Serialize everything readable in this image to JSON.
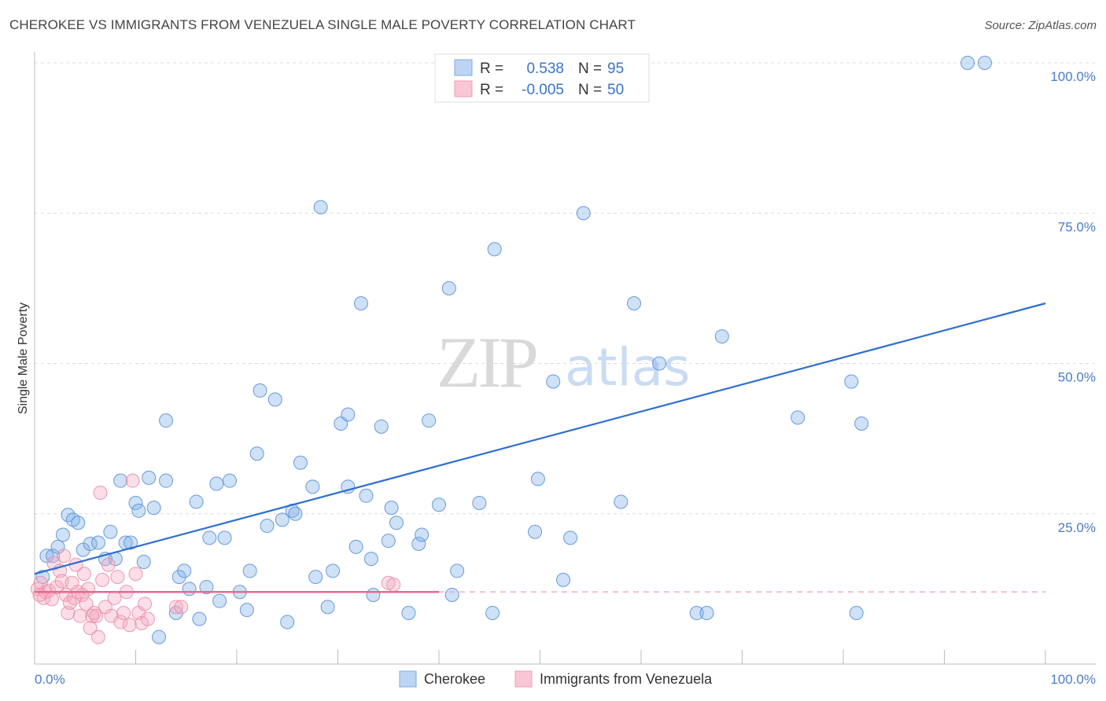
{
  "chart_data": {
    "type": "scatter",
    "title": "CHEROKEE VS IMMIGRANTS FROM VENEZUELA SINGLE MALE POVERTY CORRELATION CHART",
    "source": "Source: ZipAtlas.com",
    "watermark": {
      "zip": "ZIP",
      "atlas": "atlas"
    },
    "ylabel": "Single Male Poverty",
    "xlim": [
      0,
      100
    ],
    "ylim": [
      0,
      100
    ],
    "yticks": [
      25,
      50,
      75,
      100
    ],
    "ytick_labels": [
      "25.0%",
      "50.0%",
      "75.0%",
      "100.0%"
    ],
    "xtick_labels": {
      "min": "0.0%",
      "max": "100.0%"
    },
    "legend_box": {
      "rows": [
        {
          "r_label": "R =",
          "r_value": "0.538",
          "n_label": "N =",
          "n_value": "95"
        },
        {
          "r_label": "R =",
          "r_value": "-0.005",
          "n_label": "N =",
          "n_value": "50"
        }
      ]
    },
    "series": [
      {
        "name": "Cherokee",
        "color": "#7fb0e8",
        "stroke": "#5a91d6",
        "trend_color": "#2f6fcf",
        "trend": {
          "x0": 0,
          "y0": 15,
          "x1": 100,
          "y1": 60
        },
        "points": [
          [
            0.8,
            14.5
          ],
          [
            1.2,
            18
          ],
          [
            1.8,
            18
          ],
          [
            2.3,
            19.5
          ],
          [
            2.8,
            21.5
          ],
          [
            3.3,
            24.8
          ],
          [
            3.8,
            24
          ],
          [
            4.3,
            23.5
          ],
          [
            4.8,
            19
          ],
          [
            5.5,
            20
          ],
          [
            6.3,
            20.2
          ],
          [
            7,
            17.5
          ],
          [
            7.5,
            22
          ],
          [
            8,
            17.5
          ],
          [
            8.5,
            30.5
          ],
          [
            9,
            20.2
          ],
          [
            9.5,
            20.2
          ],
          [
            10,
            26.8
          ],
          [
            10.3,
            25.5
          ],
          [
            10.8,
            17
          ],
          [
            11.3,
            31
          ],
          [
            11.8,
            26
          ],
          [
            12.3,
            4.5
          ],
          [
            13,
            40.5
          ],
          [
            13,
            30.5
          ],
          [
            14,
            8.5
          ],
          [
            14.3,
            14.5
          ],
          [
            14.8,
            15.5
          ],
          [
            15.3,
            12.5
          ],
          [
            16,
            27
          ],
          [
            16.3,
            7.5
          ],
          [
            17,
            12.8
          ],
          [
            17.3,
            21
          ],
          [
            18,
            30
          ],
          [
            18.3,
            10.5
          ],
          [
            18.8,
            21
          ],
          [
            19.3,
            30.5
          ],
          [
            20.3,
            12
          ],
          [
            21,
            9
          ],
          [
            21.3,
            15.5
          ],
          [
            22,
            35
          ],
          [
            22.3,
            45.5
          ],
          [
            23,
            23
          ],
          [
            23.8,
            44
          ],
          [
            24.5,
            24
          ],
          [
            25,
            7
          ],
          [
            25.5,
            25.5
          ],
          [
            25.8,
            25
          ],
          [
            26.3,
            33.5
          ],
          [
            27.5,
            29.5
          ],
          [
            27.8,
            14.5
          ],
          [
            29,
            9.5
          ],
          [
            29.5,
            15.5
          ],
          [
            30.3,
            40
          ],
          [
            31,
            41.5
          ],
          [
            31,
            29.5
          ],
          [
            31.8,
            19.5
          ],
          [
            32.3,
            60
          ],
          [
            32.8,
            28
          ],
          [
            33.3,
            17.5
          ],
          [
            33.5,
            11.5
          ],
          [
            34.3,
            39.5
          ],
          [
            35,
            20.5
          ],
          [
            35.3,
            26
          ],
          [
            35.8,
            23.5
          ],
          [
            37,
            8.5
          ],
          [
            38,
            20
          ],
          [
            38.3,
            21.5
          ],
          [
            39,
            40.5
          ],
          [
            40,
            26.5
          ],
          [
            41,
            62.5
          ],
          [
            41.3,
            11.5
          ],
          [
            41.8,
            15.5
          ],
          [
            44,
            26.8
          ],
          [
            45.5,
            69
          ],
          [
            49.5,
            22
          ],
          [
            49.8,
            30.8
          ],
          [
            51.3,
            47
          ],
          [
            52.3,
            14
          ],
          [
            53,
            21
          ],
          [
            54.3,
            75
          ],
          [
            58,
            27
          ],
          [
            59.3,
            60
          ],
          [
            61.8,
            50
          ],
          [
            65.5,
            8.5
          ],
          [
            66.5,
            8.5
          ],
          [
            68,
            54.5
          ],
          [
            75.5,
            41
          ],
          [
            80.8,
            47
          ],
          [
            81.3,
            8.5
          ],
          [
            81.8,
            40
          ],
          [
            92.3,
            100
          ],
          [
            94,
            100
          ],
          [
            28.3,
            76
          ],
          [
            45.3,
            8.5
          ]
        ]
      },
      {
        "name": "Immigrants from Venezuela",
        "color": "#f5a9c0",
        "stroke": "#ea8ea9",
        "trend_color": "#e8698f",
        "trend": {
          "x0": 0,
          "y0": 12,
          "x1": 40,
          "y1": 12
        },
        "trend_dashed": {
          "x0": 40,
          "y0": 12,
          "x1": 100,
          "y1": 12
        },
        "points": [
          [
            0.3,
            12.5
          ],
          [
            0.6,
            13.5
          ],
          [
            0.9,
            11
          ],
          [
            1.1,
            12
          ],
          [
            1.4,
            12.2
          ],
          [
            1.7,
            10.8
          ],
          [
            1.9,
            16.8
          ],
          [
            2.2,
            12.8
          ],
          [
            2.5,
            15.5
          ],
          [
            2.7,
            13.8
          ],
          [
            2.9,
            18
          ],
          [
            3.1,
            11.5
          ],
          [
            3.3,
            8.5
          ],
          [
            3.5,
            10.2
          ],
          [
            3.7,
            13.5
          ],
          [
            3.9,
            11
          ],
          [
            4.1,
            16.5
          ],
          [
            4.3,
            12
          ],
          [
            4.5,
            8
          ],
          [
            4.7,
            11.5
          ],
          [
            4.9,
            15
          ],
          [
            5.1,
            10
          ],
          [
            5.3,
            12.5
          ],
          [
            5.5,
            6
          ],
          [
            5.7,
            8
          ],
          [
            5.9,
            8.5
          ],
          [
            6.1,
            8
          ],
          [
            6.3,
            4.5
          ],
          [
            6.5,
            28.5
          ],
          [
            6.7,
            14
          ],
          [
            7,
            9.5
          ],
          [
            7.3,
            16.5
          ],
          [
            7.6,
            8
          ],
          [
            7.9,
            11
          ],
          [
            8.2,
            14.5
          ],
          [
            8.5,
            7
          ],
          [
            8.8,
            8.5
          ],
          [
            9.1,
            12
          ],
          [
            9.4,
            6.5
          ],
          [
            9.7,
            30.5
          ],
          [
            10,
            15
          ],
          [
            10.3,
            8.5
          ],
          [
            10.6,
            6.8
          ],
          [
            10.9,
            10
          ],
          [
            11.2,
            7.5
          ],
          [
            14,
            9.5
          ],
          [
            14.5,
            9.5
          ],
          [
            35,
            13.5
          ],
          [
            35.5,
            13.2
          ],
          [
            0.5,
            11.5
          ]
        ]
      }
    ]
  }
}
